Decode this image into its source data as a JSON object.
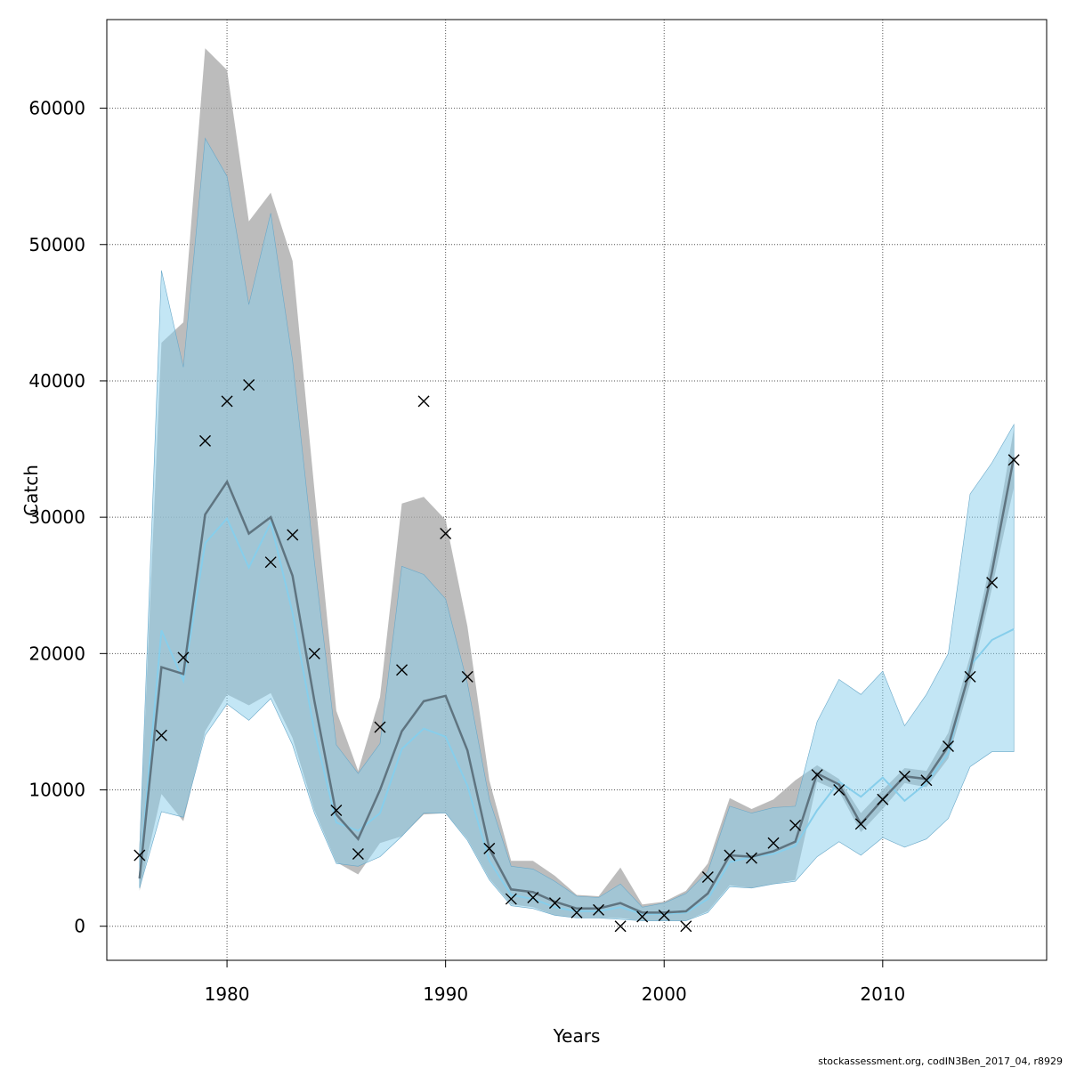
{
  "chart_data": {
    "type": "line",
    "xlabel": "Years",
    "ylabel": "Catch",
    "footnote": "stockassessment.org, codIN3Ben_2017_04, r8929",
    "xlim": [
      1974.5,
      2017.5
    ],
    "ylim": [
      -2500,
      66500
    ],
    "x_ticks": [
      1980,
      1990,
      2000,
      2010
    ],
    "y_ticks": [
      0,
      10000,
      20000,
      30000,
      40000,
      50000,
      60000
    ],
    "grid": true,
    "colors": {
      "grey_band": "#a6a6a6",
      "grey_line": "#5f7480",
      "blue_band": "#87ceeb",
      "blue_line": "#87ceeb",
      "marker": "#000000"
    },
    "x": [
      1976,
      1977,
      1978,
      1979,
      1980,
      1981,
      1982,
      1983,
      1984,
      1985,
      1986,
      1987,
      1988,
      1989,
      1990,
      1991,
      1992,
      1993,
      1994,
      1995,
      1996,
      1997,
      1998,
      1999,
      2000,
      2001,
      2002,
      2003,
      2004,
      2005,
      2006,
      2007,
      2008,
      2009,
      2010,
      2011,
      2012,
      2013,
      2014,
      2015,
      2016
    ],
    "series": [
      {
        "kind": "grey-estimate",
        "values": [
          3500,
          19000,
          18500,
          30200,
          32600,
          28800,
          30000,
          25700,
          16500,
          8200,
          6400,
          10000,
          14300,
          16500,
          16900,
          12900,
          5700,
          2700,
          2500,
          1800,
          1300,
          1300,
          1700,
          1000,
          1000,
          1100,
          2400,
          5200,
          5100,
          5500,
          6200,
          11200,
          10400,
          7500,
          9300,
          11000,
          10800,
          13200,
          18800,
          26000,
          34400
        ],
        "upper": [
          6000,
          42800,
          44300,
          64400,
          62800,
          51700,
          53800,
          48800,
          32000,
          15800,
          11400,
          16800,
          31000,
          31500,
          29800,
          22000,
          10700,
          4800,
          4800,
          3700,
          2300,
          2200,
          4300,
          1600,
          1800,
          2600,
          4600,
          9400,
          8600,
          9300,
          10700,
          11800,
          10800,
          8300,
          10000,
          11600,
          11400,
          14200,
          19800,
          27200,
          36500
        ],
        "lower": [
          2600,
          9700,
          7700,
          14300,
          17000,
          16200,
          17100,
          13800,
          8500,
          4700,
          3800,
          6100,
          6600,
          8200,
          8300,
          6400,
          3500,
          1600,
          1400,
          800,
          600,
          600,
          600,
          400,
          400,
          400,
          1100,
          3000,
          2800,
          3100,
          3400,
          10600,
          9900,
          6900,
          8600,
          10500,
          10200,
          12300,
          17800,
          24800,
          32200
        ]
      },
      {
        "kind": "blue-estimate",
        "values": [
          3600,
          21700,
          18000,
          28100,
          29900,
          26300,
          29600,
          23000,
          14300,
          7600,
          7000,
          8300,
          13000,
          14500,
          13900,
          10300,
          4800,
          2300,
          2000,
          1400,
          1100,
          1100,
          1400,
          900,
          900,
          1000,
          2000,
          4700,
          5100,
          5300,
          5900,
          8500,
          10600,
          9500,
          10900,
          9200,
          10500,
          12700,
          19100,
          21000,
          21800
        ],
        "upper": [
          5500,
          48100,
          41000,
          57800,
          55000,
          45600,
          52300,
          41500,
          26700,
          13300,
          11200,
          13400,
          26400,
          25800,
          24000,
          17800,
          9300,
          4400,
          4200,
          3300,
          2200,
          2100,
          3100,
          1400,
          1700,
          2400,
          4000,
          8800,
          8300,
          8700,
          8800,
          15000,
          18100,
          17000,
          18700,
          14700,
          17000,
          20000,
          31700,
          34000,
          36800
        ],
        "lower": [
          2800,
          8400,
          8000,
          14000,
          16300,
          15100,
          16700,
          13300,
          8300,
          4600,
          4400,
          5100,
          6600,
          8300,
          8300,
          6300,
          3400,
          1500,
          1300,
          800,
          600,
          600,
          500,
          400,
          400,
          400,
          1000,
          2900,
          2800,
          3100,
          3300,
          5100,
          6200,
          5200,
          6500,
          5800,
          6400,
          7900,
          11700,
          12800,
          12800
        ]
      }
    ],
    "observations": [
      5200,
      14000,
      19700,
      35600,
      38500,
      39700,
      26700,
      28700,
      20000,
      8500,
      5300,
      14600,
      18800,
      38500,
      28800,
      18300,
      5700,
      2000,
      2100,
      1700,
      1000,
      1200,
      0,
      700,
      800,
      0,
      3600,
      5200,
      5000,
      6100,
      7400,
      11100,
      10000,
      7500,
      9300,
      11000,
      10700,
      13200,
      18300,
      25200,
      34200
    ]
  }
}
